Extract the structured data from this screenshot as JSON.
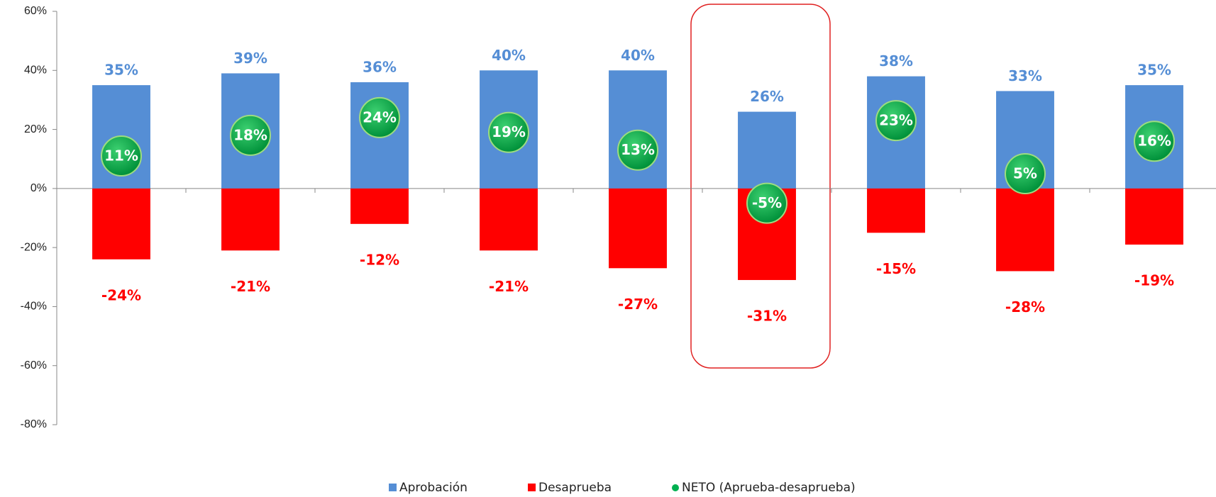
{
  "chart_data": {
    "type": "bar",
    "categories": [
      null,
      null,
      null,
      null,
      null,
      null,
      null,
      null,
      null
    ],
    "series": [
      {
        "name": "Aprobación",
        "color": "#558ed5",
        "values": [
          35,
          39,
          36,
          40,
          40,
          26,
          38,
          33,
          35
        ],
        "value_labels": [
          "35%",
          "39%",
          "36%",
          "40%",
          "40%",
          "26%",
          "38%",
          "33%",
          "35%"
        ]
      },
      {
        "name": "Desaprueba",
        "color": "#ff0000",
        "values": [
          -24,
          -21,
          -12,
          -21,
          -27,
          -31,
          -15,
          -28,
          -19
        ],
        "value_labels": [
          "-24%",
          "-21%",
          "-12%",
          "-21%",
          "-27%",
          "-31%",
          "-15%",
          "-28%",
          "-19%"
        ]
      },
      {
        "name": "NETO (Aprueba-desaprueba)",
        "color": "#00b050",
        "values": [
          11,
          18,
          24,
          19,
          13,
          -5,
          23,
          5,
          16
        ],
        "value_labels": [
          "11%",
          "18%",
          "24%",
          "19%",
          "13%",
          "-5%",
          "23%",
          "5%",
          "16%"
        ]
      }
    ],
    "ylim": [
      -80,
      60
    ],
    "yticks": [
      {
        "value": -80,
        "label": "-80%"
      },
      {
        "value": -60,
        "label": "-60%"
      },
      {
        "value": -40,
        "label": "-40%"
      },
      {
        "value": -20,
        "label": "-20%"
      },
      {
        "value": 0,
        "label": "0%"
      },
      {
        "value": 20,
        "label": "20%"
      },
      {
        "value": 40,
        "label": "40%"
      },
      {
        "value": 60,
        "label": "60%"
      }
    ],
    "legend": "bottom"
  }
}
